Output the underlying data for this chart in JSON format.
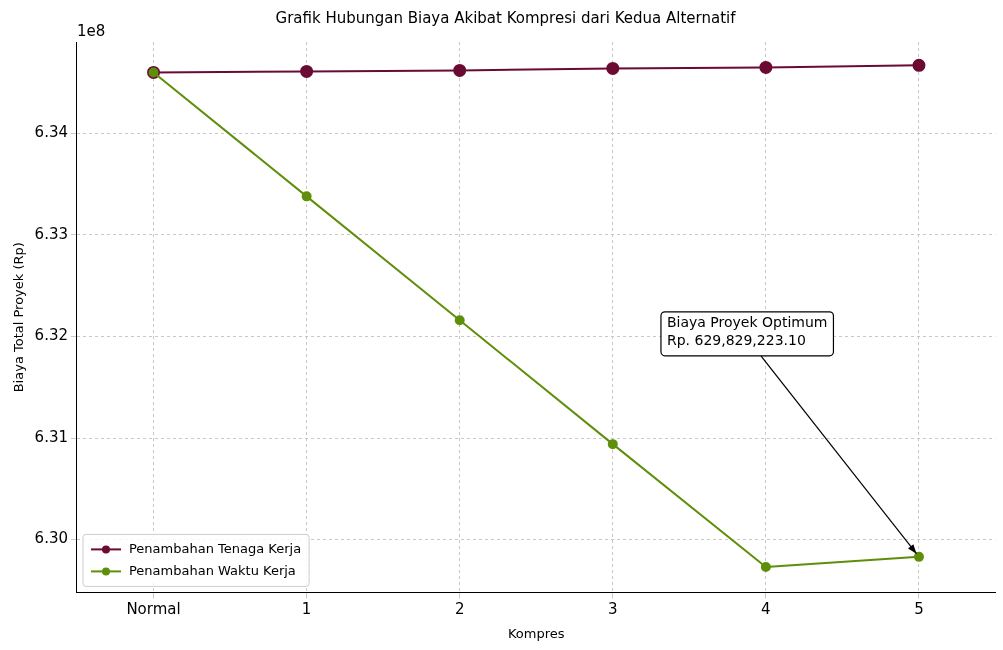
{
  "chart_data": {
    "type": "line",
    "title": "Grafik Hubungan Biaya Akibat Kompresi dari Kedua Alternatif",
    "xlabel": "Kompres",
    "ylabel": "Biaya Total Proyek (Rp)",
    "categories": [
      "Normal",
      "1",
      "2",
      "3",
      "4",
      "5"
    ],
    "series": [
      {
        "name": "Penambahan Tenaga Kerja",
        "color": "#6b0a33",
        "values": [
          6.346,
          6.3461,
          6.3462,
          6.3464,
          6.3465,
          6.3467
        ]
      },
      {
        "name": "Penambahan Waktu Kerja",
        "color": "#5f8f0a",
        "values": [
          6.346,
          6.3338,
          6.3216,
          6.3094,
          6.2973,
          6.2983
        ]
      }
    ],
    "ylim": [
      6.2948,
      6.349
    ],
    "yticks": [
      {
        "value": 6.3,
        "label": "6.30"
      },
      6.31,
      6.32,
      6.33,
      6.34
    ],
    "annotations": [
      "1e8",
      {
        "text": "Biaya Proyek Optimum\nRp. 629,829,223.10",
        "x": "5",
        "y": 6.2983
      }
    ],
    "grid": true,
    "legend": "bottom left",
    "marker": "circle",
    "line_style": "solid"
  }
}
